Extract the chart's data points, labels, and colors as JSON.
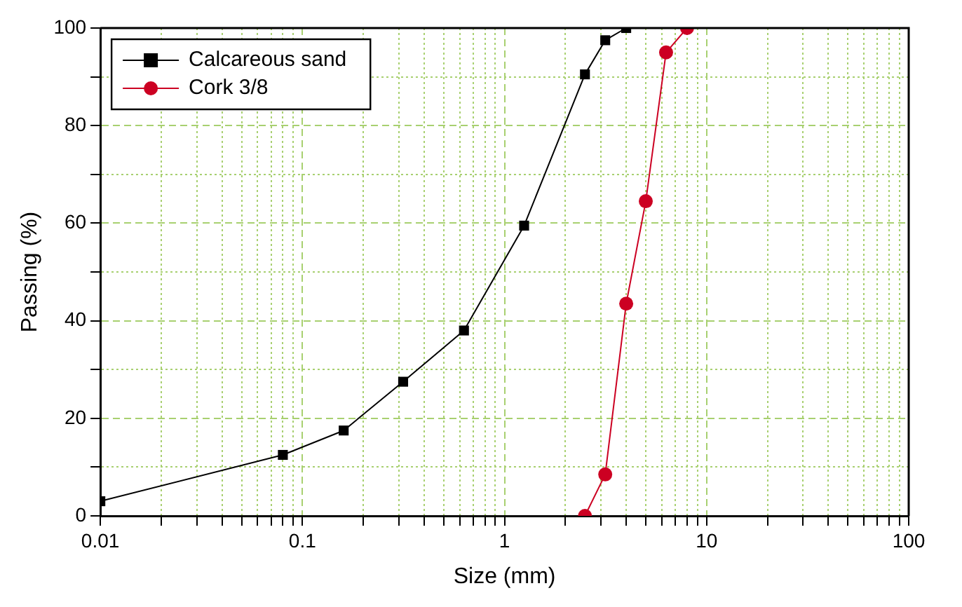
{
  "chart_data": {
    "type": "line",
    "xlabel": "Size (mm)",
    "ylabel": "Passing (%)",
    "log": "x",
    "xlim": [
      0.01,
      100
    ],
    "ylim": [
      0,
      100
    ],
    "xticks": [
      0.01,
      {
        "value": 0.02,
        "label": null
      },
      {
        "value": 0.03,
        "label": null
      },
      {
        "value": 0.04,
        "label": null
      },
      {
        "value": 0.05,
        "label": null
      },
      {
        "value": 0.06,
        "label": null
      },
      {
        "value": 0.07,
        "label": null
      },
      {
        "value": 0.08,
        "label": null
      },
      {
        "value": 0.09,
        "label": null
      },
      0.1,
      {
        "value": 0.2,
        "label": null
      },
      {
        "value": 0.3,
        "label": null
      },
      {
        "value": 0.4,
        "label": null
      },
      {
        "value": 0.5,
        "label": null
      },
      {
        "value": 0.6,
        "label": null
      },
      {
        "value": 0.7,
        "label": null
      },
      {
        "value": 0.8,
        "label": null
      },
      {
        "value": 0.9,
        "label": null
      },
      1,
      {
        "value": 2,
        "label": null
      },
      {
        "value": 3,
        "label": null
      },
      {
        "value": 4,
        "label": null
      },
      {
        "value": 5,
        "label": null
      },
      {
        "value": 6,
        "label": null
      },
      {
        "value": 7,
        "label": null
      },
      {
        "value": 8,
        "label": null
      },
      {
        "value": 9,
        "label": null
      },
      10,
      {
        "value": 20,
        "label": null
      },
      {
        "value": 30,
        "label": null
      },
      {
        "value": 40,
        "label": null
      },
      {
        "value": 50,
        "label": null
      },
      {
        "value": 60,
        "label": null
      },
      {
        "value": 70,
        "label": null
      },
      {
        "value": 80,
        "label": null
      },
      {
        "value": 90,
        "label": null
      },
      100
    ],
    "yticks": [
      0,
      {
        "value": 10,
        "label": null
      },
      20,
      {
        "value": 30,
        "label": null
      },
      40,
      {
        "value": 50,
        "label": null
      },
      60,
      {
        "value": 70,
        "label": null
      },
      80,
      {
        "value": 90,
        "label": null
      },
      100
    ],
    "grid": true,
    "legend": "top left",
    "line_style": "solid",
    "series": [
      {
        "name": "Calcareous sand",
        "color": "#000000",
        "marker": "square",
        "x": [
          0.01,
          0.08,
          0.16,
          0.315,
          0.63,
          1.25,
          2.5,
          3.15,
          4
        ],
        "values": [
          3,
          12.5,
          17.5,
          27.5,
          38,
          59.5,
          90.5,
          97.5,
          100
        ]
      },
      {
        "name": "Cork 3/8",
        "color": "#cc0022",
        "marker": "circle",
        "x": [
          2.5,
          3.15,
          4,
          5,
          6.3,
          8
        ],
        "values": [
          0,
          8.5,
          43.5,
          64.5,
          95,
          100
        ]
      }
    ]
  }
}
